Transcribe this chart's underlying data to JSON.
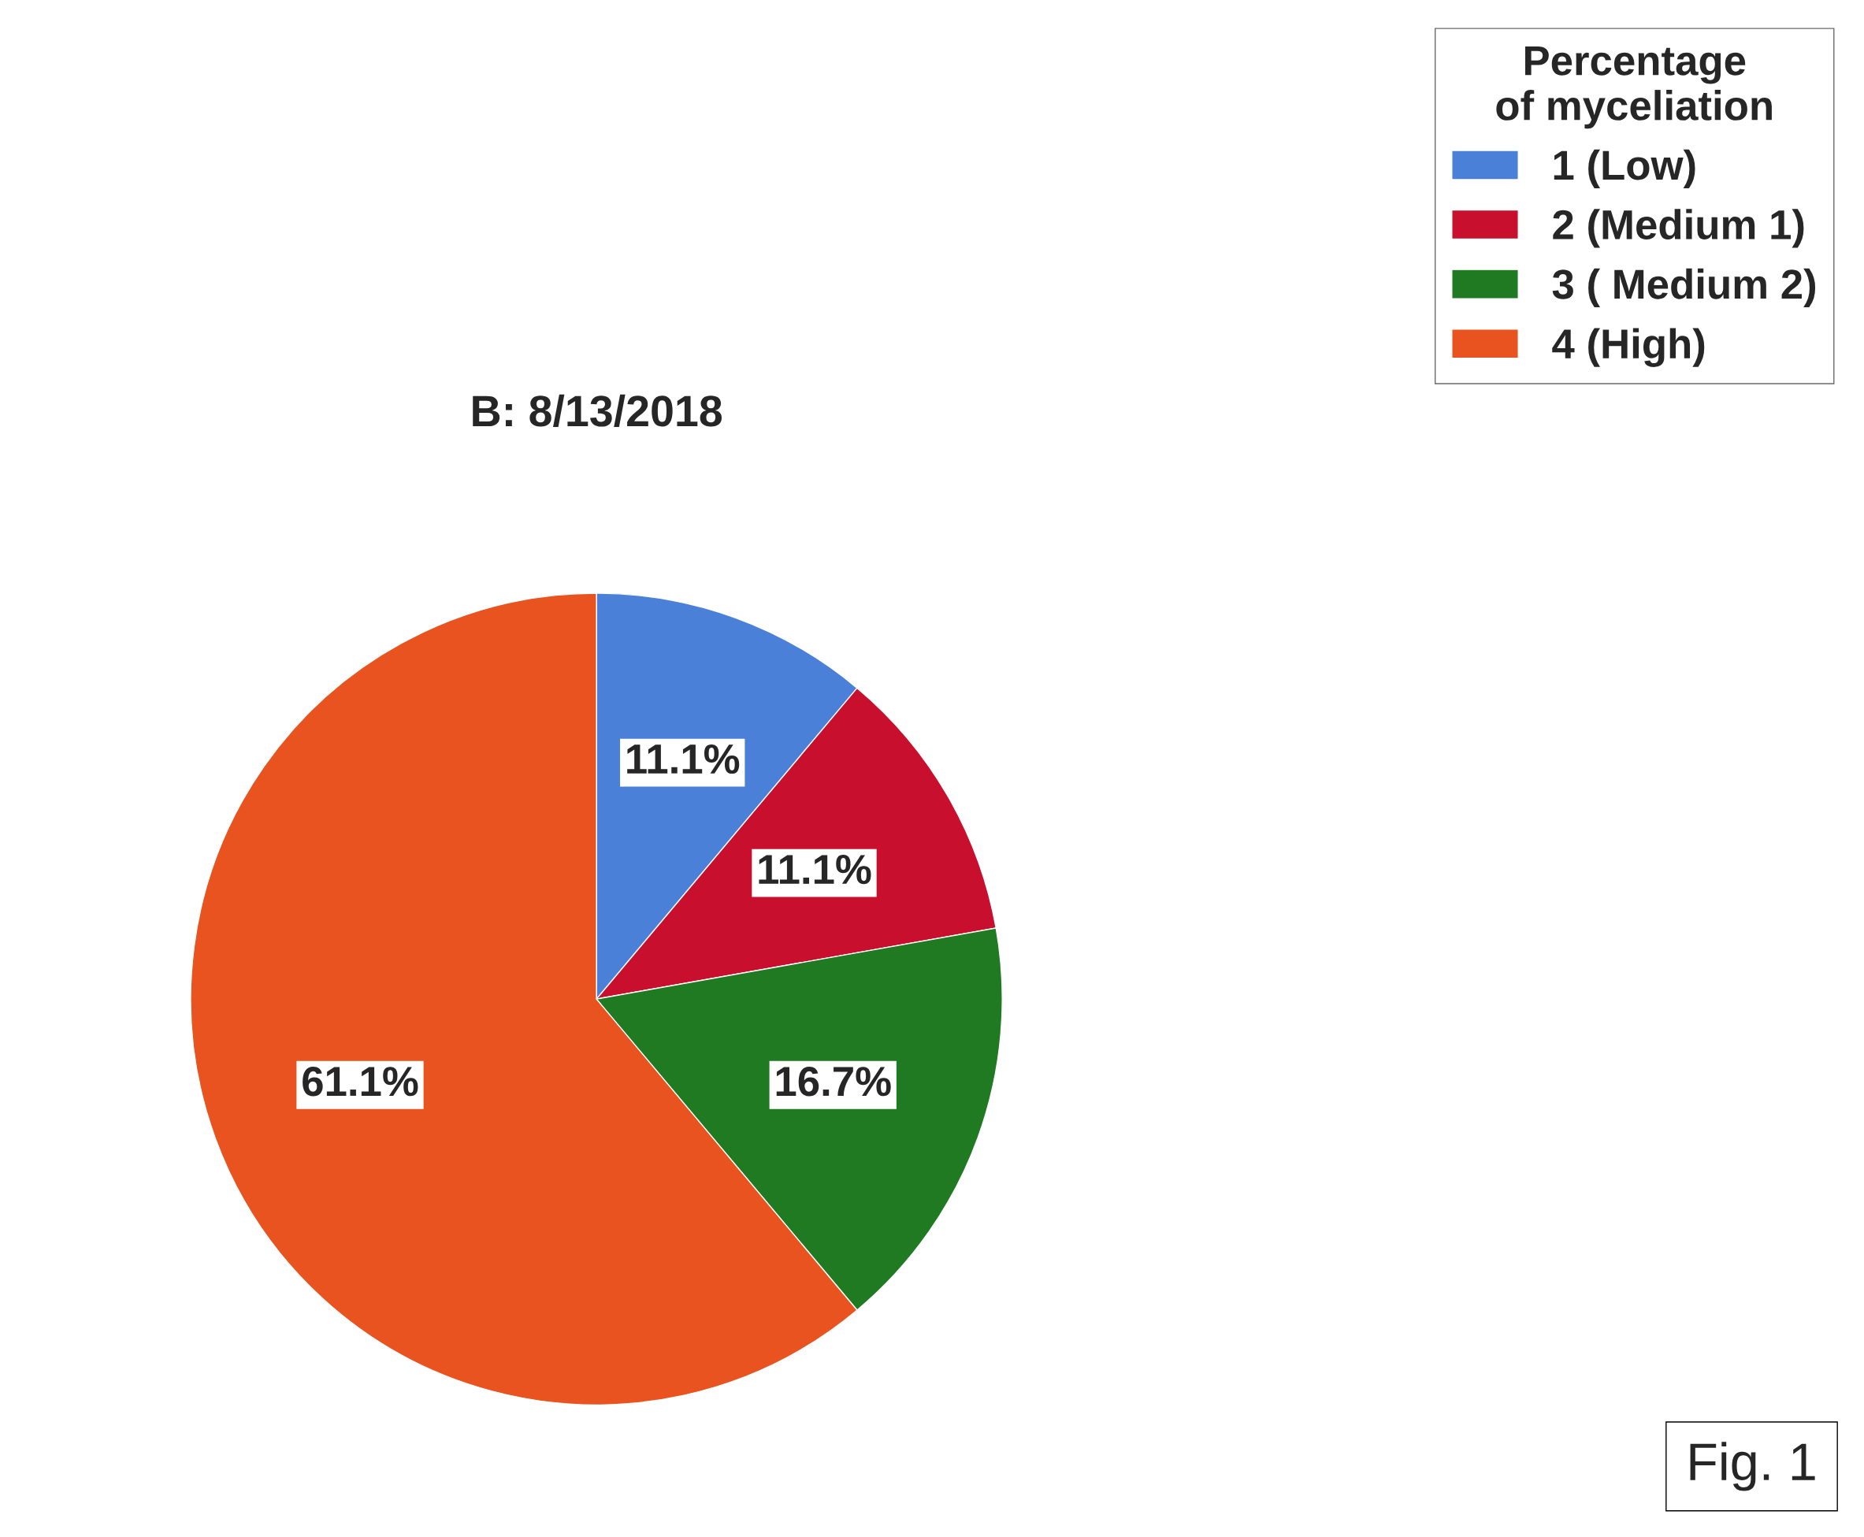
{
  "chart_data": {
    "type": "pie",
    "title": "B: 8/13/2018",
    "categories": [
      "1 (Low)",
      "2 (Medium 1)",
      "3 ( Medium 2)",
      "4 (High)"
    ],
    "values": [
      11.1,
      11.1,
      16.7,
      61.1
    ],
    "colors": [
      "#4a80d8",
      "#c8102e",
      "#1f7a22",
      "#e8531f"
    ],
    "value_labels": [
      "11.1%",
      "11.1%",
      "16.7%",
      "61.1%"
    ],
    "legend_title": "Percentage\nof myceliation",
    "legend": "top right",
    "annotations": [
      "Fig. 1"
    ]
  }
}
